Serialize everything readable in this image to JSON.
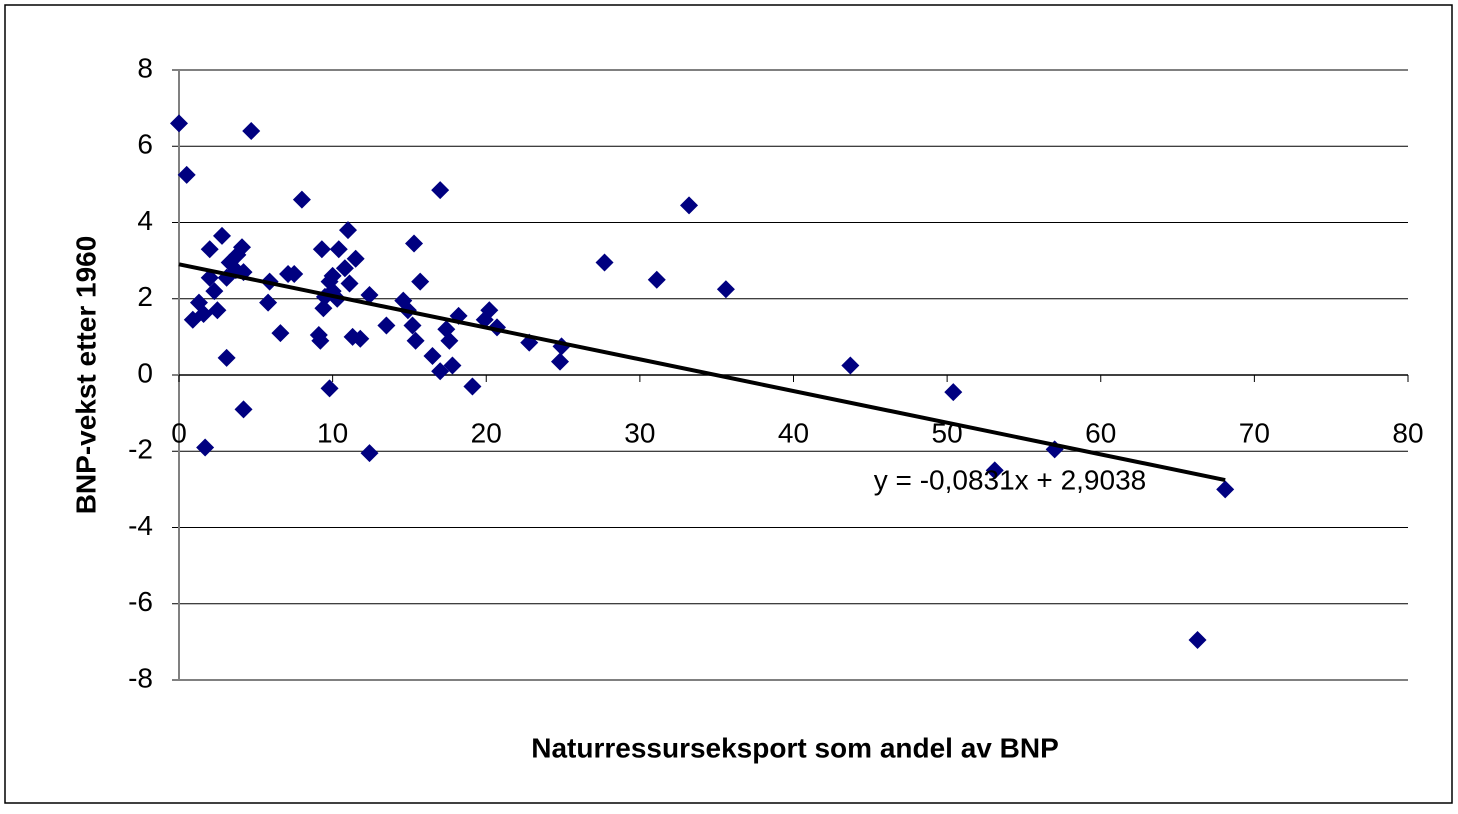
{
  "chart_data": {
    "type": "scatter",
    "xlabel": "Naturressurseksport som andel av BNP",
    "ylabel": "BNP-vekst etter 1960",
    "annotation": "y = -0,0831x + 2,9038",
    "trendline": {
      "slope": -0.0831,
      "intercept": 2.9038
    },
    "color": "#000080",
    "grid": true,
    "xlim": [
      0,
      80
    ],
    "xticks": [
      0,
      10,
      20,
      30,
      40,
      50,
      60,
      70,
      80
    ],
    "ylim": [
      -8,
      8
    ],
    "yticks": [
      -8,
      -6,
      -4,
      -2,
      0,
      2,
      4,
      6,
      8
    ],
    "x": [
      0,
      0.5,
      0.9,
      1.3,
      1.7,
      1.6,
      2.0,
      2.0,
      2.3,
      2.5,
      2.8,
      3.1,
      3.1,
      3.3,
      3.7,
      3.8,
      4.1,
      4.2,
      4.2,
      4.7,
      5.8,
      5.9,
      6.6,
      7.1,
      7.5,
      8.0,
      9.1,
      9.2,
      9.3,
      9.4,
      9.5,
      9.8,
      9.8,
      10.0,
      10.0,
      10.3,
      10.4,
      10.8,
      11.0,
      11.1,
      11.3,
      11.5,
      11.8,
      12.4,
      12.4,
      13.5,
      14.6,
      14.9,
      15.2,
      15.3,
      15.4,
      15.7,
      16.5,
      17.0,
      17.0,
      17.4,
      17.6,
      17.8,
      18.2,
      19.1,
      19.9,
      20.2,
      20.7,
      22.8,
      24.8,
      24.9,
      27.7,
      31.1,
      33.2,
      35.6,
      43.7,
      50.4,
      53.1,
      57.0,
      68.1,
      66.3
    ],
    "values": [
      6.6,
      5.25,
      1.45,
      1.9,
      -1.9,
      1.6,
      3.3,
      2.55,
      2.2,
      1.7,
      3.65,
      2.55,
      0.45,
      2.95,
      2.75,
      3.15,
      3.35,
      2.7,
      -0.9,
      6.4,
      1.9,
      2.45,
      1.1,
      2.65,
      2.65,
      4.6,
      1.05,
      0.9,
      3.3,
      1.75,
      2.05,
      2.45,
      -0.35,
      2.6,
      2.2,
      2.0,
      3.3,
      2.8,
      3.8,
      2.4,
      1.0,
      3.05,
      0.95,
      2.1,
      -2.05,
      1.3,
      1.95,
      1.7,
      1.3,
      3.45,
      0.9,
      2.45,
      0.5,
      4.85,
      0.1,
      1.2,
      0.9,
      0.25,
      1.55,
      -0.3,
      1.45,
      1.7,
      1.25,
      0.85,
      0.35,
      0.75,
      2.95,
      2.5,
      4.45,
      2.25,
      0.25,
      -0.45,
      -2.5,
      -1.95,
      -3.0,
      -6.95
    ]
  }
}
